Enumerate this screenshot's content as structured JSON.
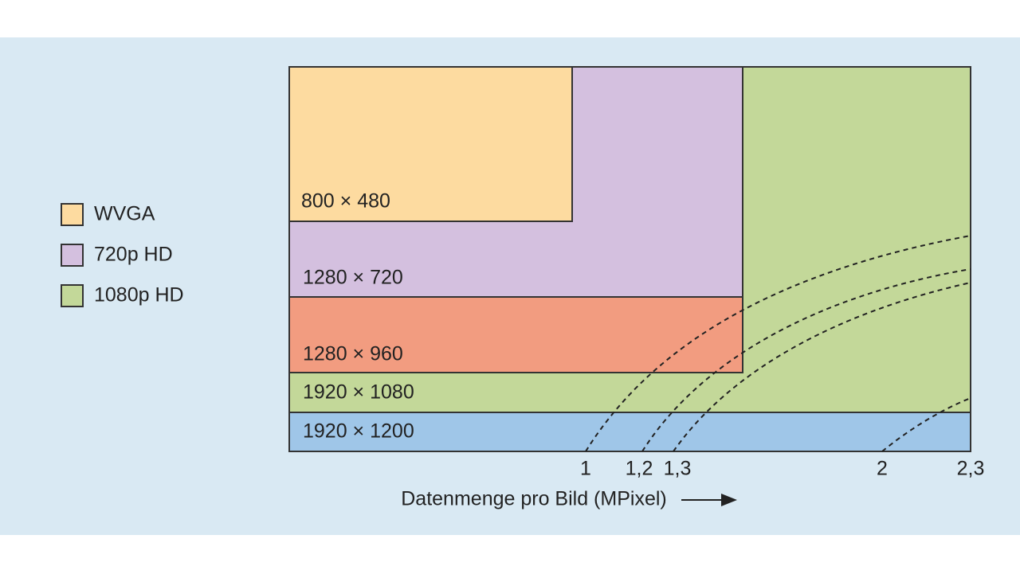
{
  "legend": {
    "items": [
      "WVGA",
      "720p HD",
      "1080p HD"
    ]
  },
  "boxes": [
    "800 × 480",
    "1280 × 720",
    "1280 × 960",
    "1920 × 1080",
    "1920 × 1200"
  ],
  "axis": {
    "ticks": [
      "1",
      "1,2",
      "1,3",
      "2",
      "2,3"
    ],
    "label": "Datenmenge pro Bild (MPixel)"
  }
}
